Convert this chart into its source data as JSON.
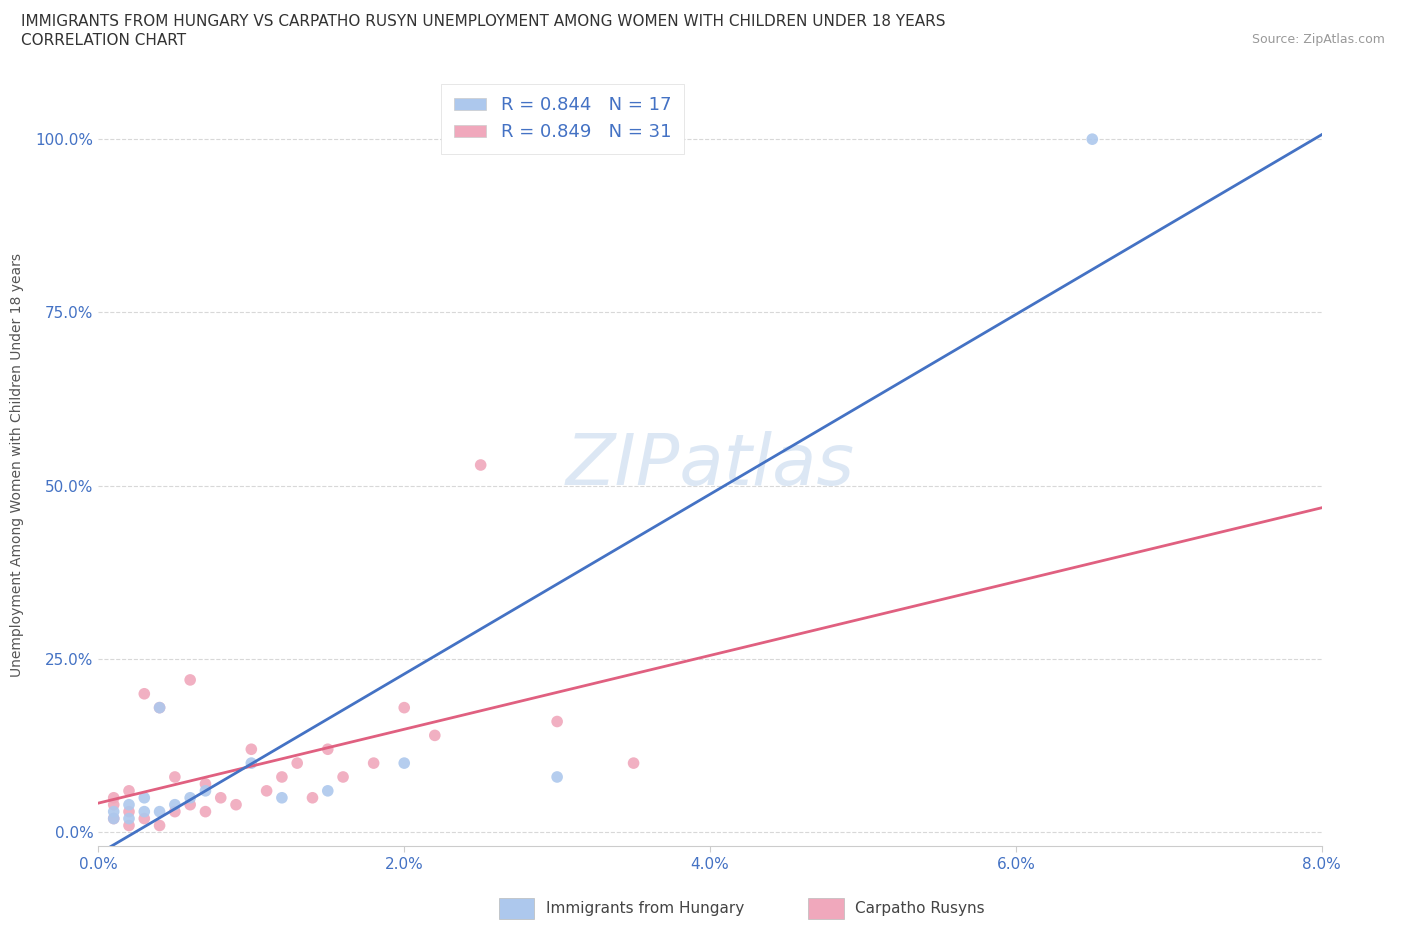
{
  "title_line1": "IMMIGRANTS FROM HUNGARY VS CARPATHO RUSYN UNEMPLOYMENT AMONG WOMEN WITH CHILDREN UNDER 18 YEARS",
  "title_line2": "CORRELATION CHART",
  "source": "Source: ZipAtlas.com",
  "ylabel": "Unemployment Among Women with Children Under 18 years",
  "xlim": [
    0,
    0.08
  ],
  "ylim": [
    -0.02,
    1.08
  ],
  "xticks": [
    0.0,
    0.02,
    0.04,
    0.06,
    0.08
  ],
  "xtick_labels": [
    "0.0%",
    "2.0%",
    "4.0%",
    "6.0%",
    "8.0%"
  ],
  "ytick_labels": [
    "0.0%",
    "25.0%",
    "50.0%",
    "75.0%",
    "100.0%"
  ],
  "yticks": [
    0.0,
    0.25,
    0.5,
    0.75,
    1.0
  ],
  "hungary_color": "#adc8ed",
  "rusyn_color": "#f0a8bc",
  "hungary_line_color": "#4472c4",
  "rusyn_line_color": "#e06080",
  "hungary_R": 0.844,
  "hungary_N": 17,
  "rusyn_R": 0.849,
  "rusyn_N": 31,
  "legend_label_color": "#4472c4",
  "watermark_color": "#c5d8ee",
  "background_color": "#ffffff",
  "grid_color": "#d8d8d8",
  "hungary_points_x": [
    0.001,
    0.001,
    0.002,
    0.002,
    0.003,
    0.003,
    0.004,
    0.004,
    0.005,
    0.006,
    0.007,
    0.01,
    0.012,
    0.015,
    0.02,
    0.03,
    0.065
  ],
  "hungary_points_y": [
    0.02,
    0.03,
    0.02,
    0.04,
    0.03,
    0.05,
    0.03,
    0.18,
    0.04,
    0.05,
    0.06,
    0.1,
    0.05,
    0.06,
    0.1,
    0.08,
    1.0
  ],
  "rusyn_points_x": [
    0.001,
    0.001,
    0.001,
    0.002,
    0.002,
    0.002,
    0.003,
    0.003,
    0.004,
    0.004,
    0.005,
    0.005,
    0.006,
    0.006,
    0.007,
    0.007,
    0.008,
    0.009,
    0.01,
    0.011,
    0.012,
    0.013,
    0.014,
    0.015,
    0.016,
    0.018,
    0.02,
    0.022,
    0.025,
    0.03,
    0.035
  ],
  "rusyn_points_y": [
    0.02,
    0.04,
    0.05,
    0.01,
    0.03,
    0.06,
    0.02,
    0.2,
    0.01,
    0.18,
    0.03,
    0.08,
    0.04,
    0.22,
    0.03,
    0.07,
    0.05,
    0.04,
    0.12,
    0.06,
    0.08,
    0.1,
    0.05,
    0.12,
    0.08,
    0.1,
    0.18,
    0.14,
    0.53,
    0.16,
    0.1
  ]
}
